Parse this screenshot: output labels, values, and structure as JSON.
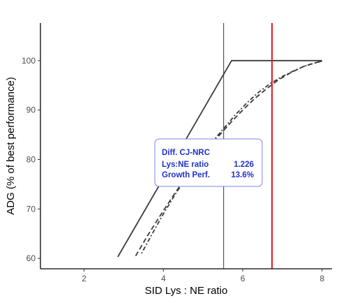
{
  "chart_data": {
    "type": "line",
    "xlabel": "SID Lys : NE ratio",
    "ylabel": "ADG (% of best performance)",
    "xlim": [
      0.9,
      8.25
    ],
    "ylim": [
      57.9,
      107.6
    ],
    "x_ticks": [
      2,
      4,
      6,
      8
    ],
    "y_ticks": [
      60,
      70,
      80,
      90,
      100
    ],
    "grid": false,
    "series": [
      {
        "style": "solid",
        "color": "#3b3b3b",
        "points": [
          [
            2.85,
            60.3
          ],
          [
            5.72,
            100
          ],
          [
            8.0,
            100
          ]
        ]
      },
      {
        "style": "dashed",
        "color": "#3b3b3b",
        "points": [
          [
            3.3,
            60.5
          ],
          [
            3.6,
            64.6
          ],
          [
            3.9,
            68.4
          ],
          [
            4.2,
            72.1
          ],
          [
            4.5,
            75.6
          ],
          [
            4.8,
            78.8
          ],
          [
            5.1,
            81.9
          ],
          [
            5.4,
            84.8
          ],
          [
            5.7,
            87.5
          ],
          [
            6.0,
            90.0
          ],
          [
            6.3,
            92.3
          ],
          [
            6.6,
            94.3
          ],
          [
            6.9,
            96.1
          ],
          [
            7.2,
            97.5
          ],
          [
            7.5,
            98.7
          ],
          [
            7.8,
            99.5
          ],
          [
            8.0,
            99.9
          ]
        ]
      },
      {
        "style": "dotdash",
        "color": "#3b3b3b",
        "points": [
          [
            3.45,
            61.0
          ],
          [
            3.7,
            64.7
          ],
          [
            4.0,
            69.0
          ],
          [
            4.3,
            73.0
          ],
          [
            4.6,
            76.6
          ],
          [
            4.9,
            80.0
          ],
          [
            5.2,
            83.2
          ],
          [
            5.5,
            86.1
          ],
          [
            5.8,
            88.9
          ],
          [
            6.1,
            91.4
          ],
          [
            6.4,
            93.6
          ],
          [
            6.7,
            95.4
          ],
          [
            7.0,
            96.8
          ],
          [
            7.3,
            98.0
          ],
          [
            7.6,
            99.0
          ],
          [
            7.9,
            99.7
          ],
          [
            8.0,
            99.9
          ]
        ]
      }
    ],
    "vlines": [
      {
        "x": 5.52,
        "color": "#333333"
      },
      {
        "x": 6.74,
        "color": "#e3161d"
      }
    ],
    "annotation": {
      "title": "Diff. CJ-NRC",
      "rows": [
        {
          "label": "Lys:NE ratio",
          "value": "1.226"
        },
        {
          "label": "Growth Perf.",
          "value": "13.6%"
        }
      ],
      "text_color": "#1f33c7",
      "border_color": "#7a86e6",
      "anchor": [
        4.37,
        82.5
      ]
    }
  }
}
